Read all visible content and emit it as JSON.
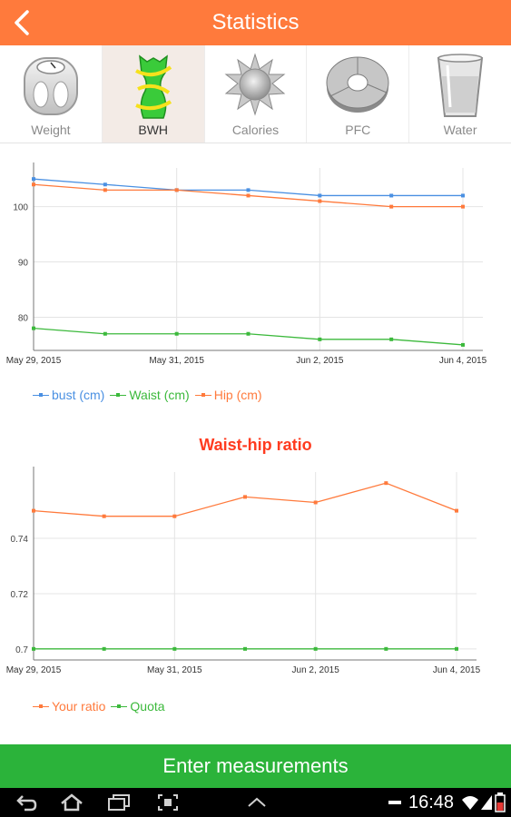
{
  "header": {
    "title": "Statistics"
  },
  "tabs": [
    {
      "label": "Weight",
      "icon": "scale-icon"
    },
    {
      "label": "BWH",
      "icon": "body-measure-icon"
    },
    {
      "label": "Calories",
      "icon": "sun-icon"
    },
    {
      "label": "PFC",
      "icon": "donut-chart-icon"
    },
    {
      "label": "Water",
      "icon": "water-glass-icon"
    }
  ],
  "active_tab": "BWH",
  "colors": {
    "header": "#FF7A3C",
    "bust": "#4A90E2",
    "waist": "#3CB93C",
    "hip": "#FF7A3C",
    "title_red": "#FF3B1F",
    "button_green": "#2BB33A"
  },
  "section_title": "Waist-hip ratio",
  "chart_data": [
    {
      "type": "line",
      "x": [
        "May 29, 2015",
        "May 30, 2015",
        "May 31, 2015",
        "Jun 1, 2015",
        "Jun 2, 2015",
        "Jun 3, 2015",
        "Jun 4, 2015"
      ],
      "xticks": [
        "May 29, 2015",
        "May 31, 2015",
        "Jun 2, 2015",
        "Jun 4, 2015"
      ],
      "yticks": [
        80,
        90,
        100
      ],
      "ylim": [
        74,
        107
      ],
      "grid": true,
      "legend": "bottom-left",
      "series": [
        {
          "name": "bust (cm)",
          "values": [
            105,
            104,
            103,
            103,
            102,
            102,
            102
          ]
        },
        {
          "name": "Waist (cm)",
          "values": [
            78,
            77,
            77,
            77,
            76,
            76,
            75
          ]
        },
        {
          "name": "Hip (cm)",
          "values": [
            104,
            103,
            103,
            102,
            101,
            100,
            100
          ]
        }
      ]
    },
    {
      "type": "line",
      "x": [
        "May 29, 2015",
        "May 30, 2015",
        "May 31, 2015",
        "Jun 1, 2015",
        "Jun 2, 2015",
        "Jun 3, 2015",
        "Jun 4, 2015"
      ],
      "xticks": [
        "May 29, 2015",
        "May 31, 2015",
        "Jun 2, 2015",
        "Jun 4, 2015"
      ],
      "yticks": [
        "0.7",
        "0.72",
        "0.74"
      ],
      "ylim": [
        0.696,
        0.764
      ],
      "grid": true,
      "legend": "bottom-left",
      "series": [
        {
          "name": "Your ratio",
          "values": [
            0.75,
            0.748,
            0.748,
            0.755,
            0.753,
            0.76,
            0.75
          ]
        },
        {
          "name": "Quota",
          "values": [
            0.7,
            0.7,
            0.7,
            0.7,
            0.7,
            0.7,
            0.7
          ]
        }
      ]
    }
  ],
  "button": {
    "label": "Enter measurements"
  },
  "status": {
    "time": "16:48"
  }
}
